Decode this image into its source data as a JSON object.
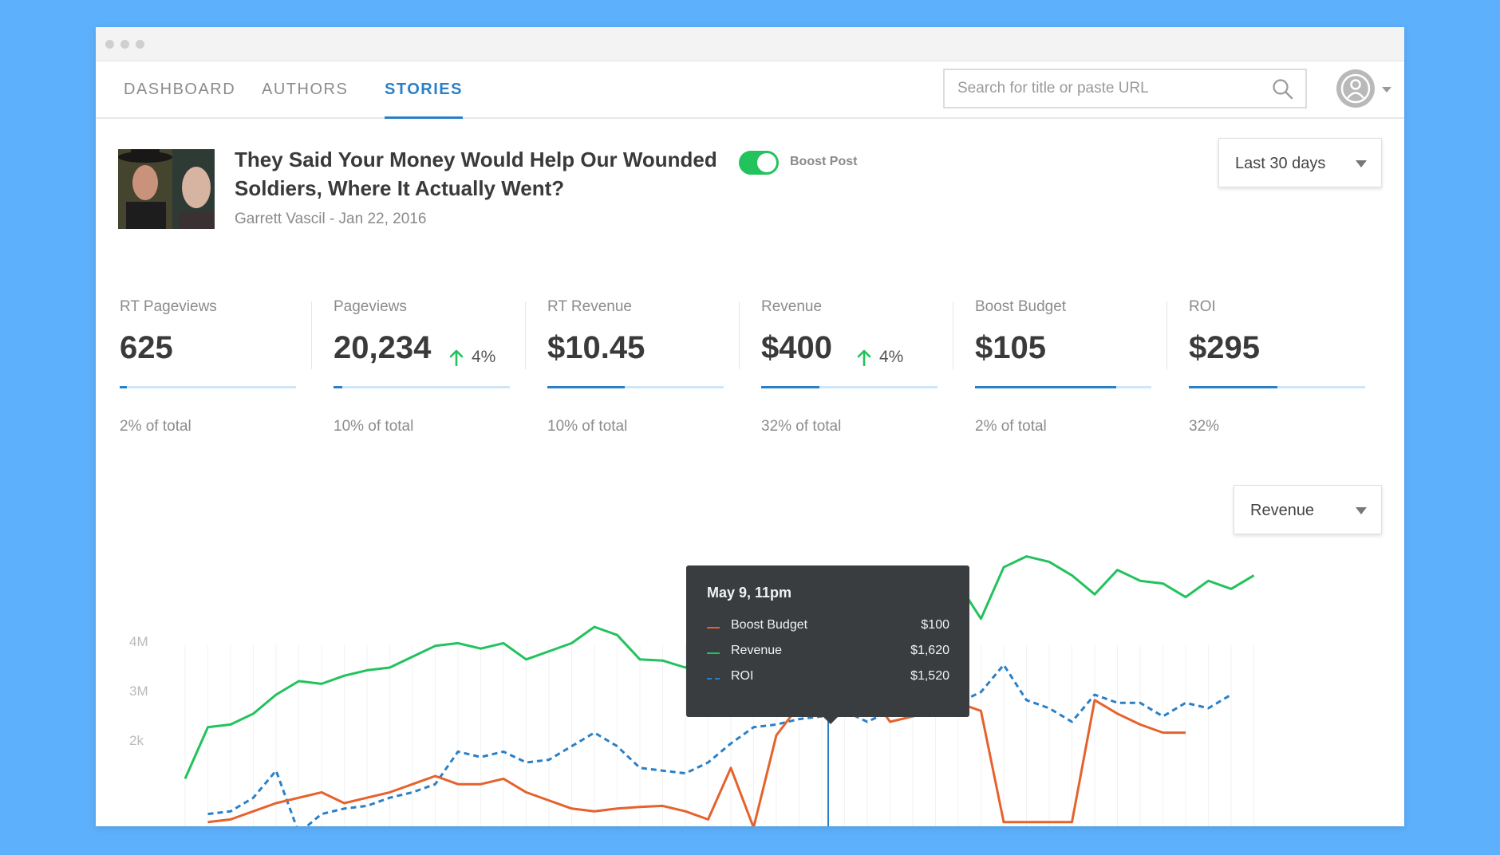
{
  "nav": {
    "tabs": [
      {
        "label": "DASHBOARD",
        "active": false
      },
      {
        "label": "AUTHORS",
        "active": false
      },
      {
        "label": "STORIES",
        "active": true
      }
    ],
    "search_placeholder": "Search for title or paste URL",
    "search_icon": "search-icon",
    "avatar_icon": "user-avatar-icon"
  },
  "story": {
    "title": "They Said Your Money Would Help Our Wounded Soldiers, Where It Actually Went?",
    "author_date": "Garrett Vascil - Jan 22, 2016",
    "boost_label": "Boost Post",
    "boost_enabled": true
  },
  "date_range": {
    "selected": "Last 30 days"
  },
  "metrics": [
    {
      "label": "RT Pageviews",
      "value": "625",
      "change": "",
      "bar_fraction": 0.04,
      "footer": "2% of total"
    },
    {
      "label": "Pageviews",
      "value": "20,234",
      "change": "4%",
      "bar_fraction": 0.05,
      "footer": "10% of total"
    },
    {
      "label": "RT Revenue",
      "value": "$10.45",
      "change": "",
      "bar_fraction": 0.44,
      "footer": "10% of total"
    },
    {
      "label": "Revenue",
      "value": "$400",
      "change": "4%",
      "bar_fraction": 0.33,
      "footer": "32% of total"
    },
    {
      "label": "Boost Budget",
      "value": "$105",
      "change": "",
      "bar_fraction": 0.8,
      "footer": "2% of total"
    },
    {
      "label": "ROI",
      "value": "$295",
      "change": "",
      "bar_fraction": 0.5,
      "footer": "32%"
    }
  ],
  "metric_select": {
    "selected": "Revenue"
  },
  "colors": {
    "accent": "#2a80c8",
    "green": "#22c25c",
    "orange": "#e5622c",
    "blue": "#2a80c8"
  },
  "chart_data": {
    "type": "line",
    "y_ticks": [
      "4M",
      "3M",
      "2k"
    ],
    "series": [
      {
        "name": "Revenue",
        "style": "solid",
        "color": "#22c25c",
        "values": [
          0.7,
          1.65,
          1.7,
          1.9,
          2.25,
          2.5,
          2.45,
          2.6,
          2.7,
          2.75,
          2.95,
          3.15,
          3.2,
          3.1,
          3.2,
          2.9,
          3.05,
          3.2,
          3.5,
          3.35,
          2.9,
          2.88,
          2.75,
          3.05,
          3.5,
          3.65,
          3.7,
          3.85,
          3.9,
          4.0,
          3.85,
          4.05,
          4.0,
          4.2,
          4.3,
          3.65,
          4.6,
          4.8,
          4.7,
          4.45,
          4.1,
          4.55,
          4.35,
          4.3,
          4.05,
          4.35,
          4.2,
          4.45
        ]
      },
      {
        "name": "ROI",
        "style": "dashed",
        "color": "#2a80c8",
        "values": [
          null,
          0.05,
          0.1,
          0.35,
          0.85,
          -0.3,
          0.05,
          0.15,
          0.2,
          0.35,
          0.45,
          0.6,
          1.2,
          1.1,
          1.2,
          1.0,
          1.05,
          1.3,
          1.55,
          1.3,
          0.9,
          0.85,
          0.8,
          1.0,
          1.35,
          1.65,
          1.7,
          1.8,
          1.85,
          1.95,
          1.75,
          1.95,
          1.9,
          2.05,
          2.1,
          2.3,
          2.8,
          2.15,
          2.0,
          1.75,
          2.25,
          2.1,
          2.1,
          1.85,
          2.1,
          2.0,
          2.25
        ]
      },
      {
        "name": "Boost Budget",
        "style": "solid",
        "color": "#e5622c",
        "values": [
          null,
          -0.1,
          -0.05,
          0.1,
          0.25,
          0.35,
          0.45,
          0.25,
          0.35,
          0.45,
          0.6,
          0.75,
          0.6,
          0.6,
          0.7,
          0.45,
          0.3,
          0.15,
          0.1,
          0.15,
          0.18,
          0.2,
          0.1,
          -0.05,
          0.9,
          -0.2,
          1.5,
          2.05,
          2.1,
          2.2,
          2.35,
          1.75,
          1.85,
          1.95,
          2.1,
          1.95,
          -0.1,
          -0.1,
          -0.1,
          -0.1,
          2.15,
          1.9,
          1.7,
          1.55,
          1.55
        ]
      }
    ]
  },
  "tooltip": {
    "title": "May 9, 11pm",
    "rows": [
      {
        "name": "Boost Budget",
        "value": "$100",
        "color": "#e5622c",
        "style": "solid"
      },
      {
        "name": "Revenue",
        "value": "$1,620",
        "color": "#22c25c",
        "style": "solid"
      },
      {
        "name": "ROI",
        "value": "$1,520",
        "color": "#2a80c8",
        "style": "dashed"
      }
    ]
  }
}
